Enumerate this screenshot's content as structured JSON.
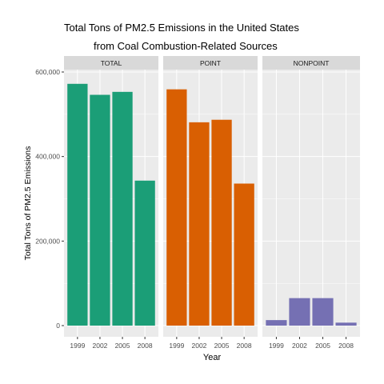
{
  "chart_data": {
    "type": "bar",
    "title_lines": [
      "Total Tons of PM2.5 Emissions in the United States",
      "from Coal Combustion-Related Sources"
    ],
    "xlabel": "Year",
    "ylabel": "Total Tons of PM2.5 Emissions",
    "categories": [
      "1999",
      "2002",
      "2005",
      "2008"
    ],
    "ylim": [
      0,
      620000
    ],
    "yticks": [
      0,
      200000,
      400000,
      600000
    ],
    "ytick_labels": [
      "0",
      "200,000",
      "400,000",
      "600,000"
    ],
    "grid": true,
    "facets": [
      {
        "name": "TOTAL",
        "color": "#1B9E77",
        "values": [
          572000,
          546000,
          553000,
          343000
        ]
      },
      {
        "name": "POINT",
        "color": "#D95F02",
        "values": [
          559000,
          481000,
          487000,
          336000
        ]
      },
      {
        "name": "NONPOINT",
        "color": "#7570B3",
        "values": [
          13000,
          65000,
          65000,
          7000
        ]
      }
    ]
  },
  "colors": {
    "panel_background": "#EBEBEB",
    "strip_background": "#D9D9D9",
    "grid_major": "#FFFFFF",
    "axis_text": "#4D4D4D"
  }
}
